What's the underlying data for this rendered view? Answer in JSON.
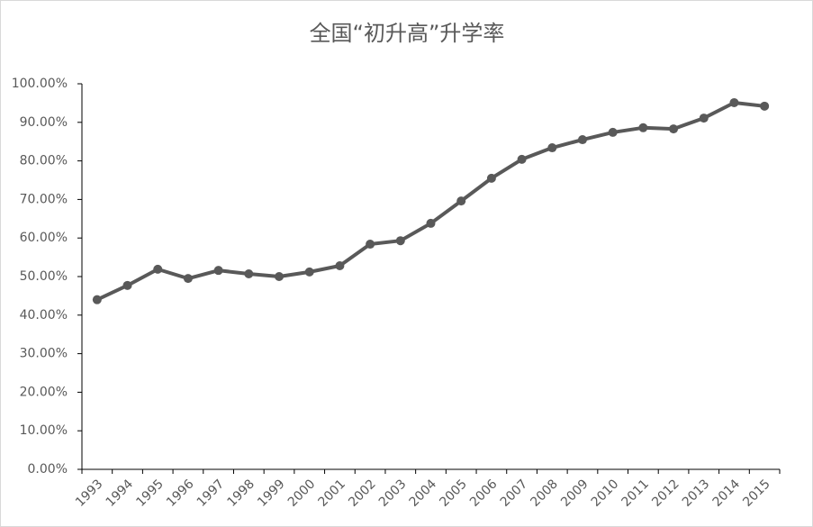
{
  "chart_data": {
    "type": "line",
    "title": "全国“初升高”升学率",
    "categories": [
      "1993",
      "1994",
      "1995",
      "1996",
      "1997",
      "1998",
      "1999",
      "2000",
      "2001",
      "2002",
      "2003",
      "2004",
      "2005",
      "2006",
      "2007",
      "2008",
      "2009",
      "2010",
      "2011",
      "2012",
      "2013",
      "2014",
      "2015"
    ],
    "series": [
      {
        "name": "升学率",
        "color": "#595959",
        "values": [
          44.0,
          47.7,
          51.9,
          49.5,
          51.6,
          50.7,
          50.0,
          51.2,
          52.8,
          58.4,
          59.3,
          63.8,
          69.6,
          75.5,
          80.4,
          83.4,
          85.5,
          87.4,
          88.6,
          88.3,
          91.1,
          95.1,
          94.2
        ]
      }
    ],
    "ylim": [
      0,
      100
    ],
    "yticks": [
      {
        "value": 0,
        "label": "0.00%"
      },
      {
        "value": 10,
        "label": "10.00%"
      },
      {
        "value": 20,
        "label": "20.00%"
      },
      {
        "value": 30,
        "label": "30.00%"
      },
      {
        "value": 40,
        "label": "40.00%"
      },
      {
        "value": 50,
        "label": "50.00%"
      },
      {
        "value": 60,
        "label": "60.00%"
      },
      {
        "value": 70,
        "label": "70.00%"
      },
      {
        "value": 80,
        "label": "80.00%"
      },
      {
        "value": 90,
        "label": "90.00%"
      },
      {
        "value": 100,
        "label": "100.00%"
      }
    ],
    "grid": false
  }
}
